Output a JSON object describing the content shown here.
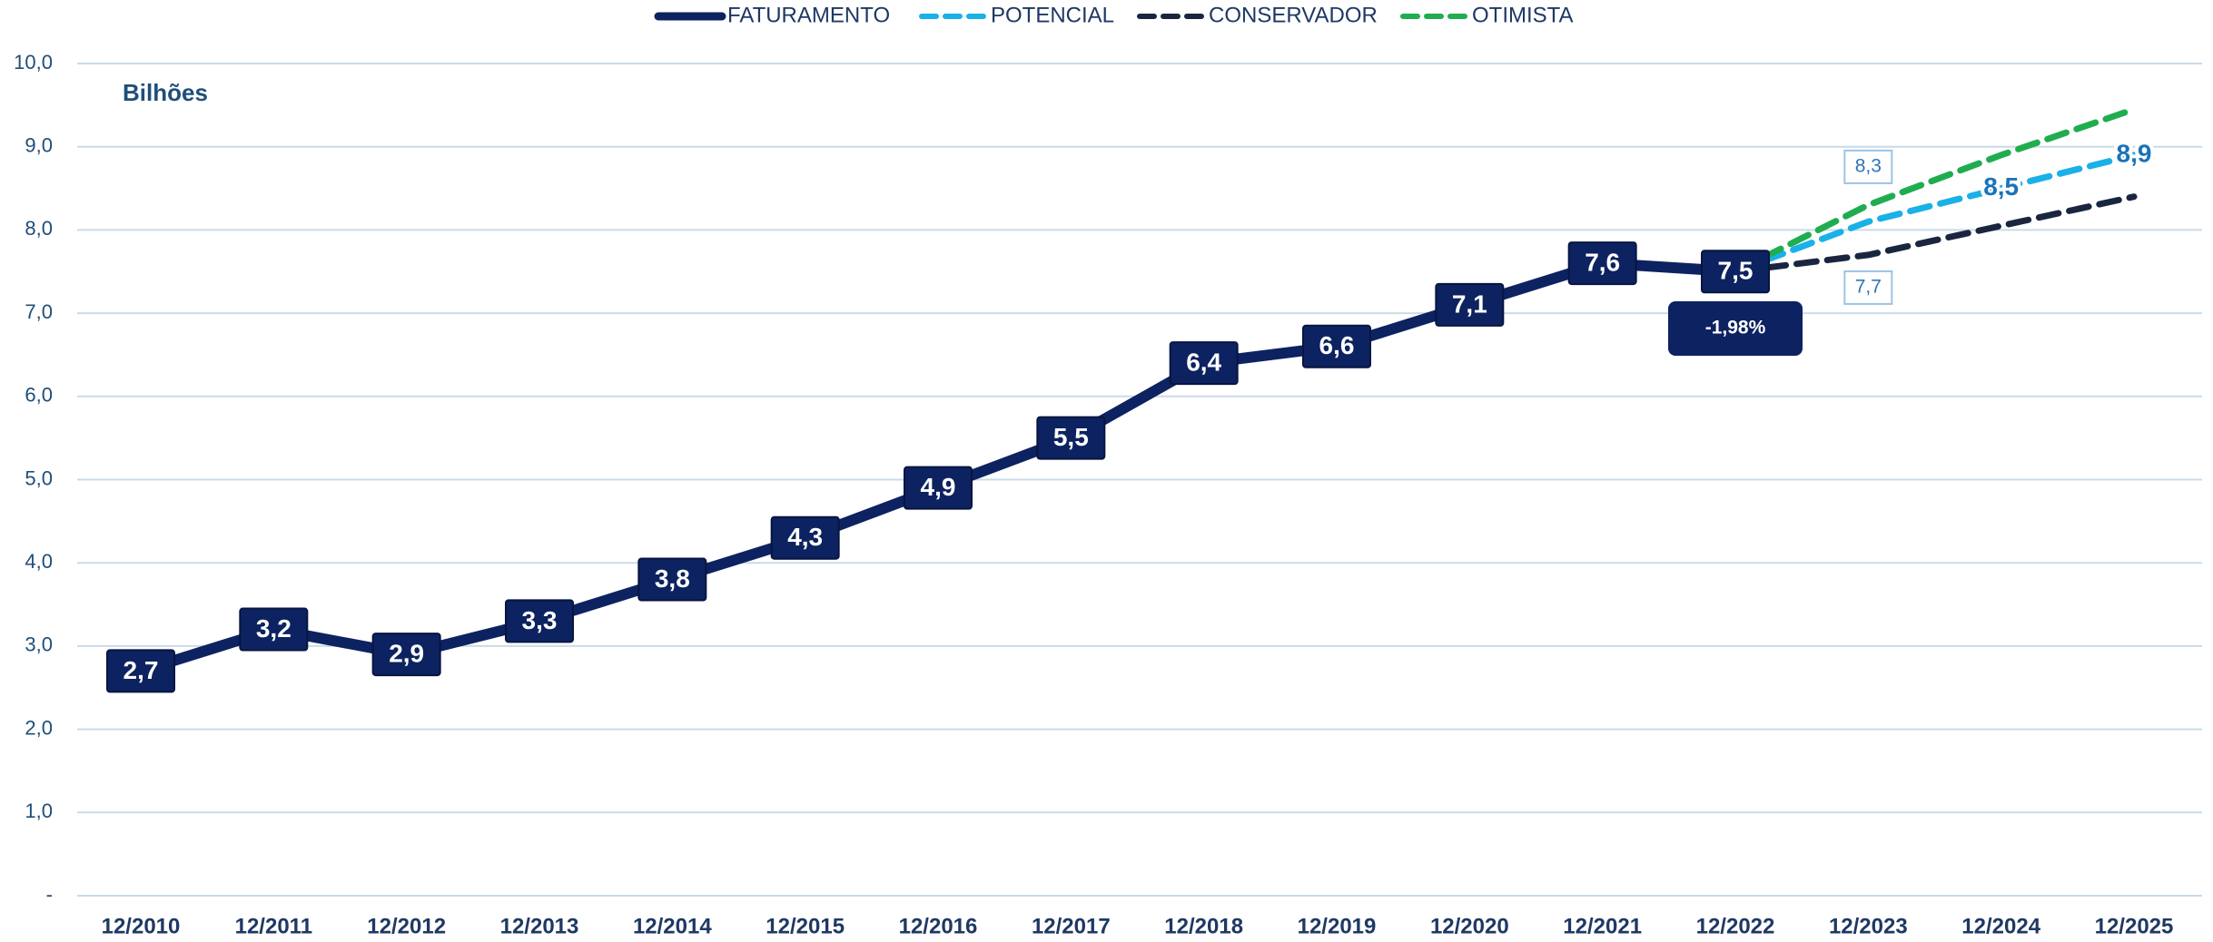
{
  "chart_data": {
    "type": "line",
    "subtitle": "Bilhões",
    "annotation": "-1,98%",
    "categories": [
      "12/2010",
      "12/2011",
      "12/2012",
      "12/2013",
      "12/2014",
      "12/2015",
      "12/2016",
      "12/2017",
      "12/2018",
      "12/2019",
      "12/2020",
      "12/2021",
      "12/2022",
      "12/2023",
      "12/2024",
      "12/2025"
    ],
    "series": [
      {
        "name": "FATURAMENTO",
        "color": "#0d2260",
        "dashed": false,
        "values": [
          2.7,
          3.2,
          2.9,
          3.3,
          3.8,
          4.3,
          4.9,
          5.5,
          6.4,
          6.6,
          7.1,
          7.6,
          7.5,
          null,
          null,
          null
        ],
        "value_labels": [
          "2,7",
          "3,2",
          "2,9",
          "3,3",
          "3,8",
          "4,3",
          "4,9",
          "5,5",
          "6,4",
          "6,6",
          "7,1",
          "7,6",
          "7,5",
          null,
          null,
          null
        ]
      },
      {
        "name": "POTENCIAL",
        "color": "#1ab0e8",
        "dashed": true,
        "values": [
          null,
          null,
          null,
          null,
          null,
          null,
          null,
          null,
          null,
          null,
          null,
          null,
          7.5,
          8.1,
          8.5,
          8.9
        ],
        "value_labels": [
          null,
          null,
          null,
          null,
          null,
          null,
          null,
          null,
          null,
          null,
          null,
          null,
          null,
          null,
          "8,5",
          "8,9"
        ]
      },
      {
        "name": "CONSERVADOR",
        "color": "#1a2640",
        "dashed": true,
        "values": [
          null,
          null,
          null,
          null,
          null,
          null,
          null,
          null,
          null,
          null,
          null,
          null,
          7.5,
          7.7,
          8.05,
          8.4
        ],
        "value_labels": [
          null,
          null,
          null,
          null,
          null,
          null,
          null,
          null,
          null,
          null,
          null,
          null,
          null,
          "7,7",
          null,
          null
        ]
      },
      {
        "name": "OTIMISTA",
        "color": "#1fad4f",
        "dashed": true,
        "values": [
          null,
          null,
          null,
          null,
          null,
          null,
          null,
          null,
          null,
          null,
          null,
          null,
          7.5,
          8.3,
          8.9,
          9.45
        ],
        "value_labels": [
          null,
          null,
          null,
          null,
          null,
          null,
          null,
          null,
          null,
          null,
          null,
          null,
          null,
          "8,3",
          null,
          null
        ]
      }
    ],
    "ylim": [
      0,
      10
    ],
    "yticks": [
      {
        "value": 0,
        "label": "-"
      },
      {
        "value": 1,
        "label": "1,0"
      },
      {
        "value": 2,
        "label": "2,0"
      },
      {
        "value": 3,
        "label": "3,0"
      },
      {
        "value": 4,
        "label": "4,0"
      },
      {
        "value": 5,
        "label": "5,0"
      },
      {
        "value": 6,
        "label": "6,0"
      },
      {
        "value": 7,
        "label": "7,0"
      },
      {
        "value": 8,
        "label": "8,0"
      },
      {
        "value": 9,
        "label": "9,0"
      },
      {
        "value": 10,
        "label": "10,0"
      }
    ],
    "grid": true,
    "legend": "top"
  }
}
